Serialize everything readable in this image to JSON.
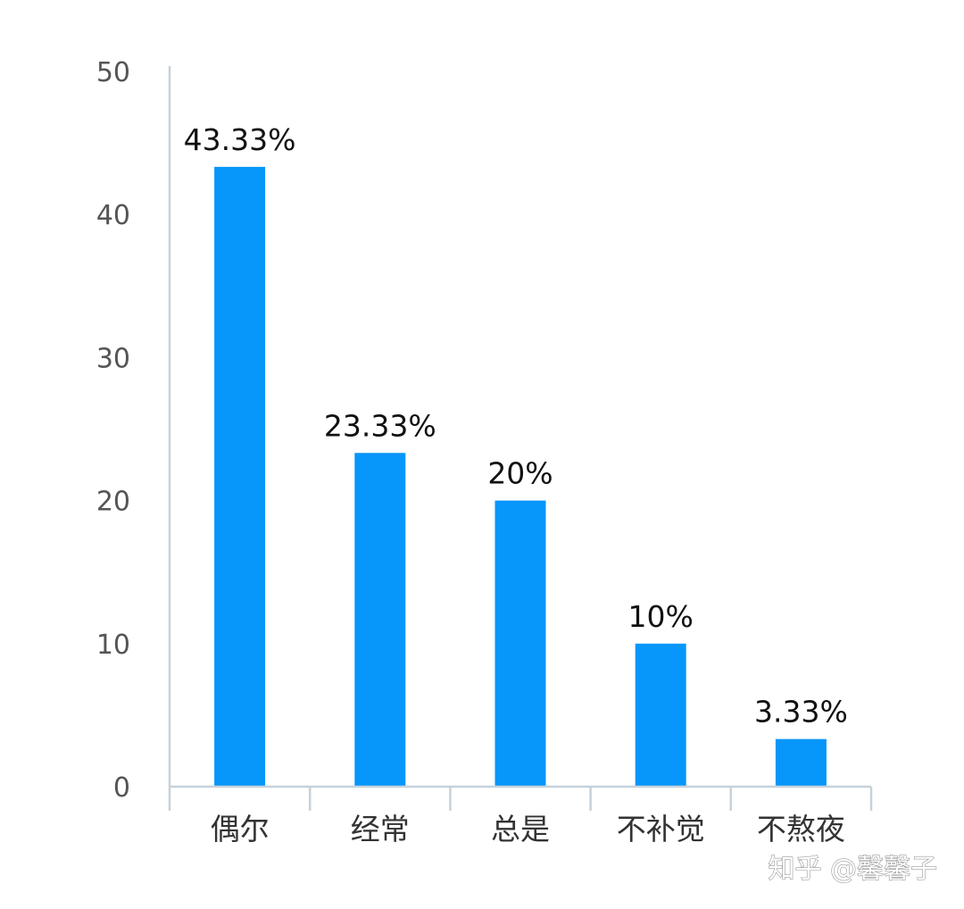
{
  "chart_data": {
    "type": "bar",
    "categories": [
      "偶尔",
      "经常",
      "总是",
      "不补觉",
      "不熬夜"
    ],
    "values": [
      43.33,
      23.33,
      20,
      10,
      3.33
    ],
    "data_labels": [
      "43.33%",
      "23.33%",
      "20%",
      "10%",
      "3.33%"
    ],
    "yticks": [
      "0",
      "10",
      "20",
      "30",
      "40",
      "50"
    ],
    "ylim": [
      0,
      50
    ],
    "title": "",
    "xlabel": "",
    "ylabel": "",
    "grid": false,
    "bar_color": "#0796fa",
    "axis_color": "#c5d2dc"
  },
  "watermark": "知乎 @馨馨子"
}
